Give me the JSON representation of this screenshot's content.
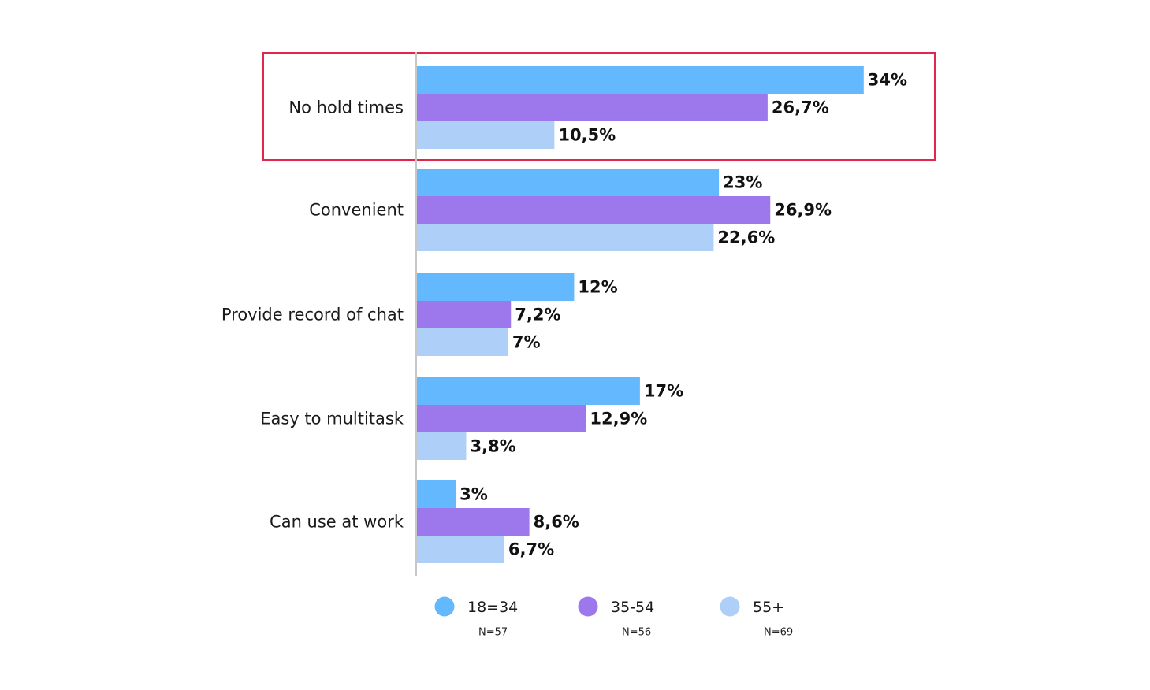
{
  "chart_data": {
    "type": "bar",
    "orientation": "horizontal",
    "categories": [
      "No hold times",
      "Convenient",
      "Provide record of chat",
      "Easy to multitask",
      "Can use at work"
    ],
    "series": [
      {
        "name": "18=34",
        "n_label": "N=57",
        "color": "#64b8fd",
        "values": [
          34,
          23,
          12,
          17,
          3
        ],
        "labels": [
          "34%",
          "23%",
          "12%",
          "17%",
          "3%"
        ]
      },
      {
        "name": "35-54",
        "n_label": "N=56",
        "color": "#9d78ec",
        "values": [
          26.7,
          26.9,
          7.2,
          12.9,
          8.6
        ],
        "labels": [
          "26,7%",
          "26,9%",
          "7,2%",
          "12,9%",
          "8,6%"
        ]
      },
      {
        "name": "55+",
        "n_label": "N=69",
        "color": "#aecff8",
        "values": [
          10.5,
          22.6,
          7,
          3.8,
          6.7
        ],
        "labels": [
          "10,5%",
          "22,6%",
          "7%",
          "3,8%",
          "6,7%"
        ]
      }
    ],
    "highlight": {
      "category": "No hold times",
      "color": "#e0284f"
    },
    "axis_color": "#c8c8c8",
    "grid": false,
    "legend_position": "bottom"
  }
}
